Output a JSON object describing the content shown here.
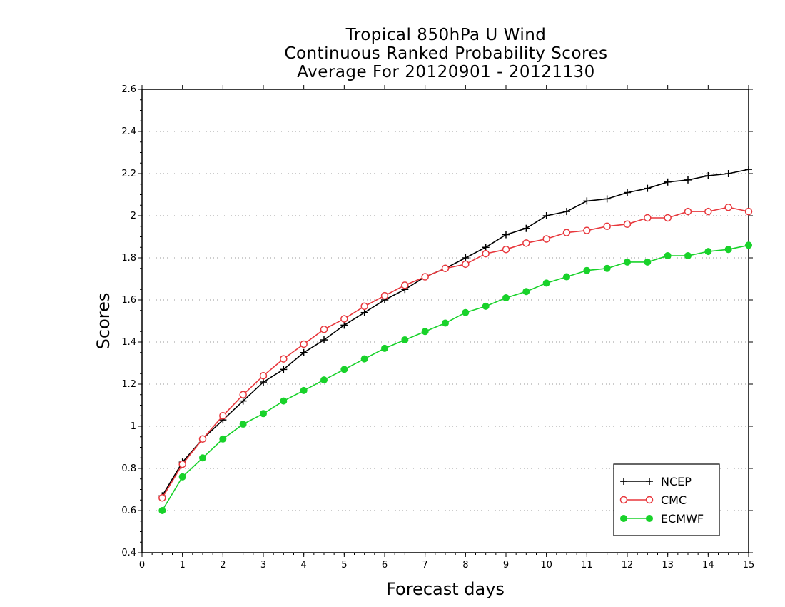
{
  "chart_data": {
    "type": "line",
    "title_lines": [
      "Tropical 850hPa U Wind",
      "Continuous Ranked Probability Scores",
      "Average For 20120901 - 20121130"
    ],
    "xlabel": "Forecast days",
    "ylabel": "Scores",
    "xlim": [
      0,
      15
    ],
    "ylim": [
      0.4,
      2.6
    ],
    "xticks": [
      "0",
      "1",
      "2",
      "3",
      "4",
      "5",
      "6",
      "7",
      "8",
      "9",
      "10",
      "11",
      "12",
      "13",
      "14",
      "15"
    ],
    "yticks": [
      "0.4",
      "0.6",
      "0.8",
      "1",
      "1.2",
      "1.4",
      "1.6",
      "1.8",
      "2",
      "2.2",
      "2.4",
      "2.6"
    ],
    "grid": "horizontal dotted",
    "legend_position": "bottom-right",
    "x": [
      0.5,
      1,
      1.5,
      2,
      2.5,
      3,
      3.5,
      4,
      4.5,
      5,
      5.5,
      6,
      6.5,
      7,
      7.5,
      8,
      8.5,
      9,
      9.5,
      10,
      10.5,
      11,
      11.5,
      12,
      12.5,
      13,
      13.5,
      14,
      14.5,
      15
    ],
    "series": [
      {
        "name": "NCEP",
        "color": "#000000",
        "marker": "plus",
        "values": [
          0.67,
          0.83,
          0.94,
          1.03,
          1.12,
          1.21,
          1.27,
          1.35,
          1.41,
          1.48,
          1.54,
          1.6,
          1.65,
          1.71,
          1.75,
          1.8,
          1.85,
          1.91,
          1.94,
          2.0,
          2.02,
          2.07,
          2.08,
          2.11,
          2.13,
          2.16,
          2.17,
          2.19,
          2.2,
          2.22
        ]
      },
      {
        "name": "CMC",
        "color": "#e8373c",
        "marker": "open-circle",
        "values": [
          0.66,
          0.82,
          0.94,
          1.05,
          1.15,
          1.24,
          1.32,
          1.39,
          1.46,
          1.51,
          1.57,
          1.62,
          1.67,
          1.71,
          1.75,
          1.77,
          1.82,
          1.84,
          1.87,
          1.89,
          1.92,
          1.93,
          1.95,
          1.96,
          1.99,
          1.99,
          2.02,
          2.02,
          2.04,
          2.02
        ]
      },
      {
        "name": "ECMWF",
        "color": "#18d22a",
        "marker": "filled-circle",
        "values": [
          0.6,
          0.76,
          0.85,
          0.94,
          1.01,
          1.06,
          1.12,
          1.17,
          1.22,
          1.27,
          1.32,
          1.37,
          1.41,
          1.45,
          1.49,
          1.54,
          1.57,
          1.61,
          1.64,
          1.68,
          1.71,
          1.74,
          1.75,
          1.78,
          1.78,
          1.81,
          1.81,
          1.83,
          1.84,
          1.86
        ]
      }
    ]
  }
}
